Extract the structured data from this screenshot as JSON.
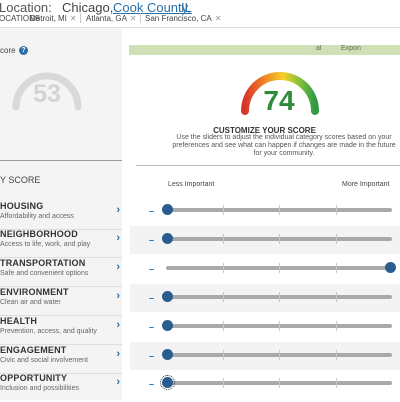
{
  "header": {
    "location_label": "Location:",
    "city": "Chicago,",
    "county": "Cook County,",
    "state": "IL",
    "comparisons_label": "OCATIONS:",
    "comparisons": [
      {
        "label": "Detroit, MI"
      },
      {
        "label": "Atlanta, GA"
      },
      {
        "label": "San Francisco, CA"
      }
    ]
  },
  "score_panel": {
    "score_label": "core",
    "help_icon": "?",
    "score": "53",
    "categories_header": "Y SCORE"
  },
  "categories": [
    {
      "name": "HOUSING",
      "desc": "Affordability and access",
      "slider_value": 0.0,
      "focused": false
    },
    {
      "name": "NEIGHBORHOOD",
      "desc": "Access to life, work, and play",
      "slider_value": 0.0,
      "focused": false
    },
    {
      "name": "TRANSPORTATION",
      "desc": "Safe and convenient options",
      "slider_value": 1.0,
      "focused": false
    },
    {
      "name": "ENVIRONMENT",
      "desc": "Clean air and water",
      "slider_value": 0.0,
      "focused": false
    },
    {
      "name": "HEALTH",
      "desc": "Prevention, access, and quality",
      "slider_value": 0.0,
      "focused": false
    },
    {
      "name": "ENGAGEMENT",
      "desc": "Civic and social involvement",
      "slider_value": 0.0,
      "focused": false
    },
    {
      "name": "OPPORTUNITY",
      "desc": "Inclusion and possibilities",
      "slider_value": 0.0,
      "focused": true
    }
  ],
  "customize": {
    "map_label_1": "al",
    "map_label_2": "Expon",
    "score": "74",
    "title": "CUSTOMIZE YOUR SCORE",
    "description": "Use the sliders to adjust the individual category scores based on your preferences and see what can happen if changes are made in the future for your community.",
    "less_label": "Less Important",
    "more_label": "More Important",
    "minus_symbol": "–"
  },
  "colors": {
    "accent": "#2a6ea6",
    "score_green": "#2e8b3a",
    "slider_thumb": "#2a5d8f",
    "gauge_gray": "#d9d9d9"
  }
}
